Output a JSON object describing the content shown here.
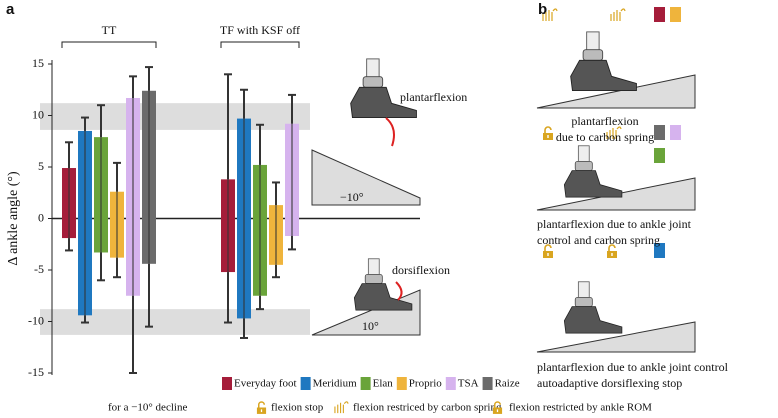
{
  "panel_labels": [
    "a",
    "b"
  ],
  "chart_data": {
    "type": "floating-bar",
    "y_label": "Δ ankle angle (°)",
    "groups": [
      "TT",
      "TF with KSF off"
    ],
    "ylim": [
      -15,
      15
    ],
    "yticks": [
      -15,
      -10,
      -5,
      0,
      5,
      10,
      15
    ],
    "shaded_ranges": [
      [
        8.6,
        11.2
      ],
      [
        -8.8,
        -11.3
      ]
    ],
    "series": [
      {
        "name": "Everyday foot",
        "color": "#a51d3a",
        "max": [
          4.9,
          3.8
        ],
        "min": [
          -1.9,
          -5.2
        ],
        "max_err": [
          2.5,
          10.2
        ],
        "min_err": [
          1.2,
          4.9
        ]
      },
      {
        "name": "Meridium",
        "color": "#1f78c0",
        "max": [
          8.5,
          9.7
        ],
        "min": [
          -9.4,
          -9.7
        ],
        "max_err": [
          1.3,
          2.8
        ],
        "min_err": [
          0.7,
          1.9
        ]
      },
      {
        "name": "Elan",
        "color": "#6aa43a",
        "max": [
          7.9,
          5.2
        ],
        "min": [
          -3.3,
          -7.5
        ],
        "max_err": [
          3.1,
          3.9
        ],
        "min_err": [
          2.7,
          1.3
        ]
      },
      {
        "name": "Proprio",
        "color": "#efb43c",
        "max": [
          2.6,
          1.3
        ],
        "min": [
          -3.8,
          -4.5
        ],
        "max_err": [
          2.8,
          2.2
        ],
        "min_err": [
          1.9,
          1.2
        ]
      },
      {
        "name": "TSA",
        "color": "#d6b3ee",
        "max": [
          11.7,
          9.2
        ],
        "min": [
          -7.5,
          -1.7
        ],
        "max_err": [
          2.1,
          2.8
        ],
        "min_err": [
          7.5,
          1.3
        ]
      },
      {
        "name": "Raize",
        "color": "#6b6b6b",
        "max": [
          12.4,
          null
        ],
        "min": [
          -4.4,
          null
        ],
        "max_err": [
          2.3,
          null
        ],
        "min_err": [
          6.1,
          null
        ]
      }
    ],
    "annotations": [
      "plantarflexion",
      "−10°",
      "dorsiflexion",
      "10°"
    ]
  },
  "panel_b": {
    "captions": [
      [
        "plantarflexion",
        "due to carbon spring"
      ],
      [
        "plantarflexion due to ankle joint",
        "control and carbon spring"
      ],
      [
        "plantarflexion due to ankle joint control",
        "autoadaptive dorsiflexing stop"
      ]
    ]
  },
  "key": [
    "for a −10° decline",
    "flexion stop",
    "flexion restriced by carbon spring",
    "flexion restricted by ankle ROM"
  ]
}
